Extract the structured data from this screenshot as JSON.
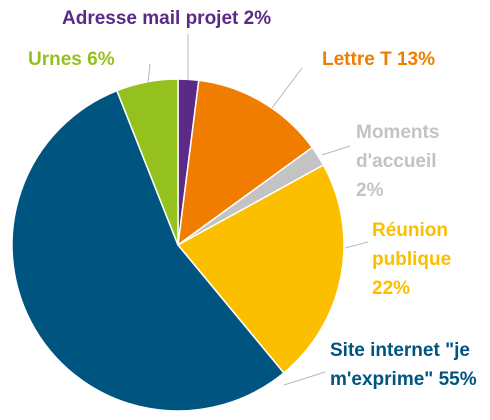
{
  "chart_data": {
    "type": "pie",
    "categories": [
      "Adresse mail projet",
      "Lettre T",
      "Moments d'accueil",
      "Réunion publique",
      "Site internet \"je m'exprime\"",
      "Urnes"
    ],
    "values": [
      2,
      13,
      2,
      22,
      55,
      6
    ],
    "value_labels": [
      "2%",
      "13%",
      "2%",
      "22%",
      "55%",
      "6%"
    ],
    "colors": [
      "#5b2a86",
      "#f07d00",
      "#c3c3c3",
      "#fbbf00",
      "#005580",
      "#95c11f"
    ]
  }
}
